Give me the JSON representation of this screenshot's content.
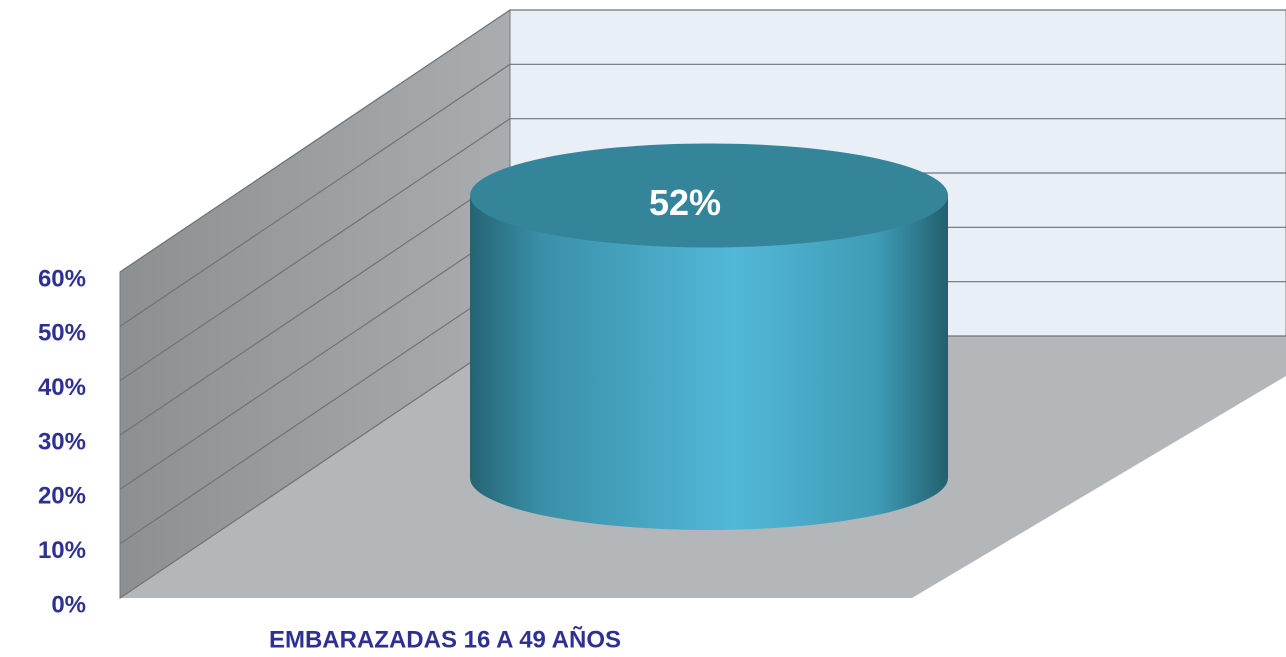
{
  "chart_data": {
    "type": "bar",
    "categories": [
      "EMBARAZADAS 16 A 49 AÑOS"
    ],
    "values": [
      52
    ],
    "value_labels": [
      "52%"
    ],
    "color": "#4bacc6",
    "ylim": [
      0,
      60
    ],
    "yticks": [
      {
        "value": 0,
        "label": "0%"
      },
      {
        "value": 10,
        "label": "10%"
      },
      {
        "value": 20,
        "label": "20%"
      },
      {
        "value": 30,
        "label": "30%"
      },
      {
        "value": 40,
        "label": "40%"
      },
      {
        "value": 50,
        "label": "50%"
      },
      {
        "value": 60,
        "label": "60%"
      }
    ],
    "grid": true
  }
}
